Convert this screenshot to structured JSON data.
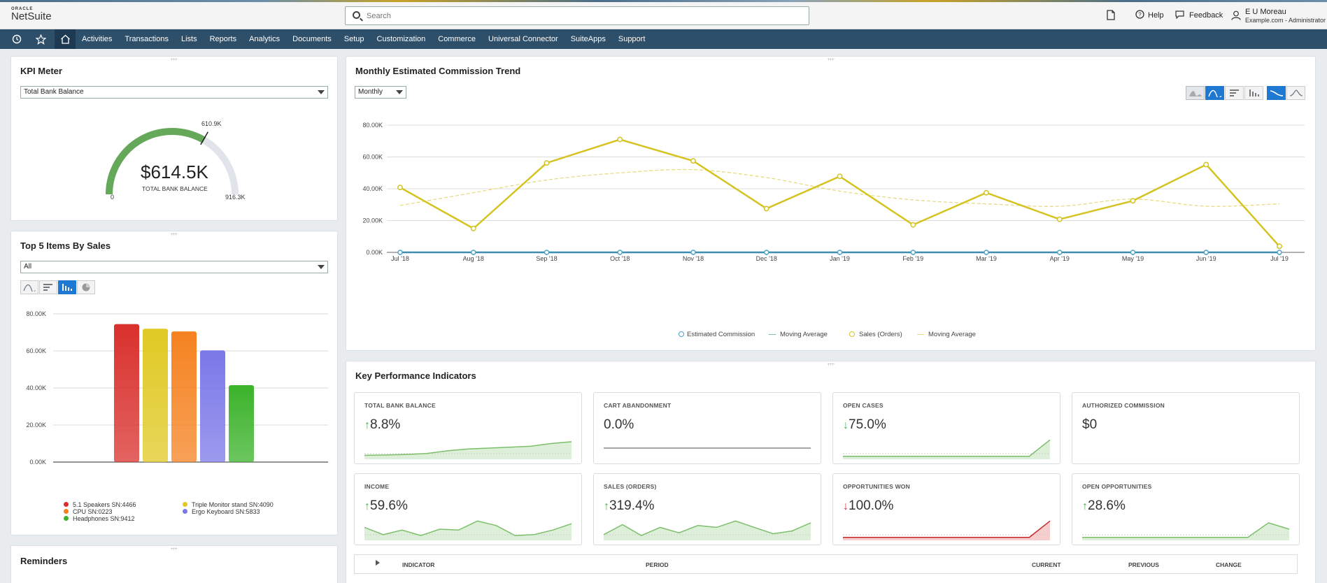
{
  "header": {
    "logo_oracle": "ORACLE",
    "logo_netsuite": "NetSuite",
    "search_placeholder": "Search",
    "help": "Help",
    "feedback": "Feedback",
    "user_name": "E U Moreau",
    "user_role": "Example.com - Administrator"
  },
  "nav": {
    "items": [
      "Activities",
      "Transactions",
      "Lists",
      "Reports",
      "Analytics",
      "Documents",
      "Setup",
      "Customization",
      "Commerce",
      "Universal Connector",
      "SuiteApps",
      "Support"
    ]
  },
  "kpi_meter": {
    "title": "KPI Meter",
    "select": "Total Bank Balance",
    "value": "$614.5K",
    "value_label": "TOTAL BANK BALANCE",
    "min": "0",
    "max": "916.3K",
    "target": "610.9K",
    "fill_fraction": 0.67
  },
  "top5": {
    "title": "Top 5 Items By Sales",
    "select": "All",
    "legend": [
      {
        "label": "5.1 Speakers SN:4466",
        "color": "#d9302c"
      },
      {
        "label": "Triple Monitor stand SN:4090",
        "color": "#e0c923"
      },
      {
        "label": "CPU SN:0223",
        "color": "#f58220"
      },
      {
        "label": "Ergo Keyboard SN:5833",
        "color": "#7b78e8"
      },
      {
        "label": "Headphones SN:9412",
        "color": "#3bb32a"
      }
    ]
  },
  "trend": {
    "title": "Monthly Estimated Commission Trend",
    "select": "Monthly",
    "legend": {
      "est": "Estimated Commission",
      "ma1": "Moving Average",
      "sales": "Sales (Orders)",
      "ma2": "Moving Average"
    }
  },
  "chart_data": [
    {
      "type": "line",
      "title": "Monthly Estimated Commission Trend",
      "x": [
        "Jul '18",
        "Aug '18",
        "Sep '18",
        "Oct '18",
        "Nov '18",
        "Dec '18",
        "Jan '19",
        "Feb '19",
        "Mar '19",
        "Apr '19",
        "May '19",
        "Jun '19",
        "Jul '19"
      ],
      "yticks": [
        "0.00K",
        "20.00K",
        "40.00K",
        "60.00K",
        "80.00K"
      ],
      "ylim": [
        0,
        80000
      ],
      "series": [
        {
          "name": "Estimated Commission",
          "color": "#4aa3c8",
          "values": [
            0,
            0,
            0,
            0,
            0,
            0,
            0,
            0,
            0,
            0,
            0,
            0,
            0
          ]
        },
        {
          "name": "Moving Average",
          "color": "#6fb3a0",
          "values": [
            0,
            0,
            0,
            0,
            0,
            0,
            0,
            0,
            0,
            0,
            0,
            0,
            0
          ]
        },
        {
          "name": "Sales (Orders)",
          "color": "#d4c320",
          "values": [
            40800,
            15000,
            56200,
            71000,
            57500,
            27500,
            47800,
            17300,
            37500,
            20800,
            32400,
            55200,
            3800
          ]
        },
        {
          "name": "Moving Average",
          "color": "#e6d978",
          "values": [
            29500,
            37500,
            45500,
            50000,
            52000,
            47000,
            38500,
            33000,
            30500,
            29000,
            33500,
            29000,
            30500
          ]
        }
      ],
      "grid": true,
      "legend": "bottom"
    },
    {
      "type": "bar",
      "title": "Top 5 Items By Sales",
      "categories": [
        "5.1 Speakers SN:4466",
        "Triple Monitor stand SN:4090",
        "CPU SN:0223",
        "Ergo Keyboard SN:5833",
        "Headphones SN:9412"
      ],
      "values": [
        74500,
        72000,
        70500,
        60300,
        41500
      ],
      "colors": [
        "#d9302c",
        "#e0c923",
        "#f58220",
        "#7b78e8",
        "#3bb32a"
      ],
      "yticks": [
        "0.00K",
        "20.00K",
        "40.00K",
        "60.00K",
        "80.00K"
      ],
      "ylim": [
        0,
        80000
      ],
      "grid": true,
      "legend": "bottom"
    }
  ],
  "kpi": {
    "title": "Key Performance Indicators",
    "cards": [
      {
        "label": "TOTAL BANK BALANCE",
        "value": "8.8%",
        "dir": "up",
        "trend": [
          0.1,
          0.12,
          0.15,
          0.2,
          0.35,
          0.45,
          0.5,
          0.55,
          0.6,
          0.75,
          0.85
        ]
      },
      {
        "label": "CART ABANDONMENT",
        "value": "0.0%",
        "dir": "none",
        "trend": [
          0.5,
          0.5,
          0.5,
          0.5,
          0.5,
          0.5,
          0.5,
          0.5,
          0.5,
          0.5,
          0.5
        ]
      },
      {
        "label": "OPEN CASES",
        "value": "75.0%",
        "dir": "down-good",
        "trend": [
          0.05,
          0.05,
          0.05,
          0.05,
          0.05,
          0.05,
          0.05,
          0.05,
          0.05,
          0.05,
          0.95
        ]
      },
      {
        "label": "AUTHORIZED COMMISSION",
        "value": "$0",
        "dir": "none",
        "trend": []
      },
      {
        "label": "INCOME",
        "value": "59.6%",
        "dir": "up",
        "trend": [
          0.6,
          0.2,
          0.45,
          0.15,
          0.5,
          0.45,
          0.95,
          0.7,
          0.15,
          0.2,
          0.45,
          0.8
        ]
      },
      {
        "label": "SALES (ORDERS)",
        "value": "319.4%",
        "dir": "up",
        "trend": [
          0.2,
          0.75,
          0.15,
          0.6,
          0.3,
          0.7,
          0.6,
          0.95,
          0.6,
          0.25,
          0.4,
          0.85
        ]
      },
      {
        "label": "OPPORTUNITIES WON",
        "value": "100.0%",
        "dir": "down-bad",
        "trend": [
          0.05,
          0.05,
          0.05,
          0.05,
          0.05,
          0.05,
          0.05,
          0.05,
          0.05,
          0.05,
          0.95
        ]
      },
      {
        "label": "OPEN OPPORTUNITIES",
        "value": "28.6%",
        "dir": "up",
        "trend": [
          0.05,
          0.05,
          0.05,
          0.05,
          0.05,
          0.05,
          0.05,
          0.05,
          0.05,
          0.85,
          0.5
        ]
      }
    ],
    "table_headers": {
      "indicator": "INDICATOR",
      "period": "PERIOD",
      "current": "CURRENT",
      "previous": "PREVIOUS",
      "change": "CHANGE"
    }
  },
  "reminders": {
    "title": "Reminders"
  }
}
